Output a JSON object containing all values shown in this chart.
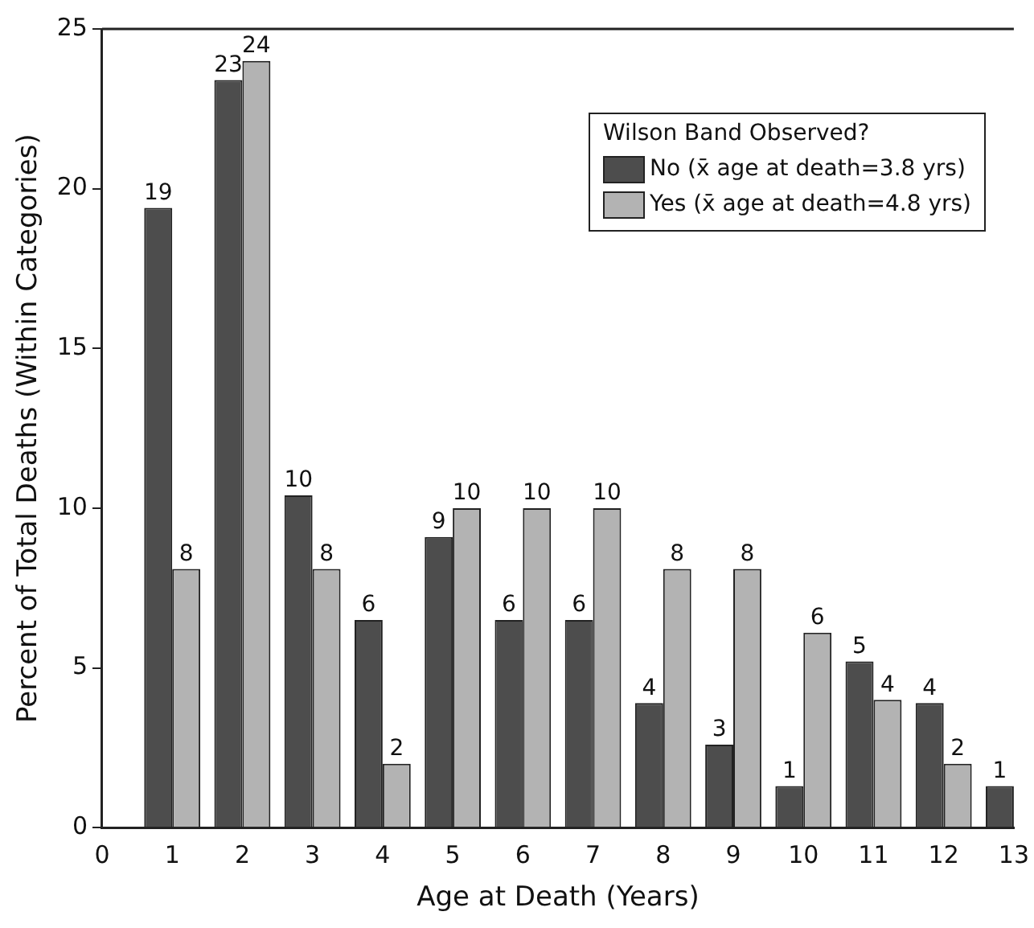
{
  "chart_data": {
    "type": "bar",
    "xlabel": "Age at Death (Years)",
    "ylabel": "Percent of Total Deaths (Within Categories)",
    "legend_title": "Wilson Band Observed?",
    "x": [
      1,
      2,
      3,
      4,
      5,
      6,
      7,
      8,
      9,
      10,
      11,
      12,
      13
    ],
    "xlim": [
      0,
      13
    ],
    "xticks": [
      0,
      1,
      2,
      3,
      4,
      5,
      6,
      7,
      8,
      9,
      10,
      11,
      12,
      13
    ],
    "ylim": [
      0,
      25
    ],
    "yticks": [
      0,
      5,
      10,
      15,
      20,
      25
    ],
    "series": [
      {
        "name": "No (x̄ age at death=3.8 yrs)",
        "color": "#4d4d4d",
        "values": [
          19.4,
          23.4,
          10.4,
          6.5,
          9.1,
          6.5,
          6.5,
          3.9,
          2.6,
          1.3,
          5.2,
          3.9,
          1.3
        ],
        "value_labels": [
          "19",
          "23",
          "10",
          "6",
          "9",
          "6",
          "6",
          "4",
          "3",
          "1",
          "5",
          "4",
          "1"
        ]
      },
      {
        "name": "Yes (x̄ age at death=4.8 yrs)",
        "color": "#b3b3b3",
        "values": [
          8.1,
          24,
          8.1,
          2,
          10,
          10,
          10,
          8.1,
          8.1,
          6.1,
          4,
          2,
          null
        ],
        "value_labels": [
          "8",
          "24",
          "8",
          "2",
          "10",
          "10",
          "10",
          "8",
          "8",
          "6",
          "4",
          "2",
          null
        ]
      }
    ],
    "grid": false,
    "legend": "top right"
  }
}
